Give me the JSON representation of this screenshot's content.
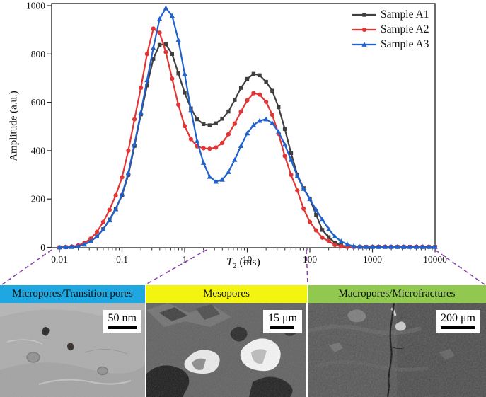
{
  "chart_data": {
    "type": "line",
    "xlabel": "T2 (ms)",
    "xlabel_parts": {
      "main": "T",
      "sub": "2",
      "rest": " (ms)"
    },
    "ylabel": "Amplitude (a.u.)",
    "x_scale": "log",
    "xlim": [
      0.01,
      10000
    ],
    "ylim": [
      0,
      1000
    ],
    "x_ticks": [
      "0.01",
      "0.1",
      "1",
      "10",
      "100",
      "1000",
      "10000"
    ],
    "y_ticks": [
      0,
      200,
      400,
      600,
      800,
      1000
    ],
    "grid": false,
    "legend_position": "top-right",
    "x": [
      0.01,
      0.0126,
      0.0158,
      0.02,
      0.0251,
      0.0316,
      0.0398,
      0.0501,
      0.0631,
      0.0794,
      0.1,
      0.126,
      0.158,
      0.2,
      0.251,
      0.316,
      0.398,
      0.501,
      0.631,
      0.794,
      1,
      1.26,
      1.58,
      2,
      2.51,
      3.16,
      3.98,
      5.01,
      6.31,
      7.94,
      10,
      12.6,
      15.8,
      20,
      25.1,
      31.6,
      39.8,
      50.1,
      63.1,
      79.4,
      100,
      126,
      158,
      200,
      251,
      316,
      398,
      501,
      631,
      794,
      1000,
      1259,
      1585,
      1995,
      2512,
      3162,
      3981,
      5012,
      6310,
      7943,
      10000
    ],
    "series": [
      {
        "name": "Sample A1",
        "color": "#3f3f3f",
        "marker": "square",
        "values": [
          0,
          1,
          2,
          5,
          12,
          25,
          45,
          75,
          115,
          160,
          215,
          300,
          420,
          550,
          670,
          780,
          838,
          840,
          800,
          720,
          640,
          575,
          530,
          510,
          505,
          513,
          532,
          562,
          610,
          660,
          697,
          718,
          712,
          685,
          648,
          580,
          490,
          390,
          300,
          245,
          200,
          135,
          72,
          42,
          19,
          8,
          3,
          2,
          2,
          2,
          2,
          2,
          2,
          2,
          2,
          2,
          2,
          2,
          2,
          2,
          2
        ]
      },
      {
        "name": "Sample A2",
        "color": "#e23535",
        "marker": "circle",
        "values": [
          0,
          1,
          3,
          8,
          18,
          36,
          64,
          105,
          155,
          215,
          290,
          400,
          530,
          660,
          800,
          905,
          888,
          808,
          698,
          590,
          502,
          448,
          418,
          410,
          408,
          413,
          432,
          468,
          512,
          562,
          608,
          638,
          632,
          602,
          548,
          470,
          378,
          300,
          235,
          160,
          105,
          70,
          40,
          26,
          10,
          4,
          2,
          2,
          2,
          2,
          2,
          2,
          2,
          2,
          2,
          2,
          2,
          2,
          2,
          2,
          2
        ]
      },
      {
        "name": "Sample A3",
        "color": "#2061cc",
        "marker": "triangle",
        "values": [
          0,
          1,
          2,
          5,
          12,
          25,
          45,
          75,
          112,
          158,
          220,
          308,
          428,
          558,
          692,
          825,
          945,
          990,
          958,
          858,
          718,
          568,
          440,
          350,
          292,
          272,
          280,
          312,
          362,
          420,
          472,
          506,
          524,
          530,
          514,
          478,
          425,
          362,
          295,
          242,
          200,
          155,
          115,
          75,
          45,
          25,
          12,
          5,
          3,
          2,
          2,
          2,
          2,
          2,
          2,
          2,
          2,
          2,
          2,
          2,
          2
        ]
      }
    ]
  },
  "bands": [
    {
      "label": "Micropores/Transition pores",
      "color": "#1ea7e0"
    },
    {
      "label": "Mesopores",
      "color": "#f4f411"
    },
    {
      "label": "Macropores/Microfractures",
      "color": "#90c850"
    }
  ],
  "sem_panels": [
    {
      "scale_label": "50 nm"
    },
    {
      "scale_label": "15 μm"
    },
    {
      "scale_label": "200 μm"
    }
  ],
  "connector_color": "#8a3fa8"
}
